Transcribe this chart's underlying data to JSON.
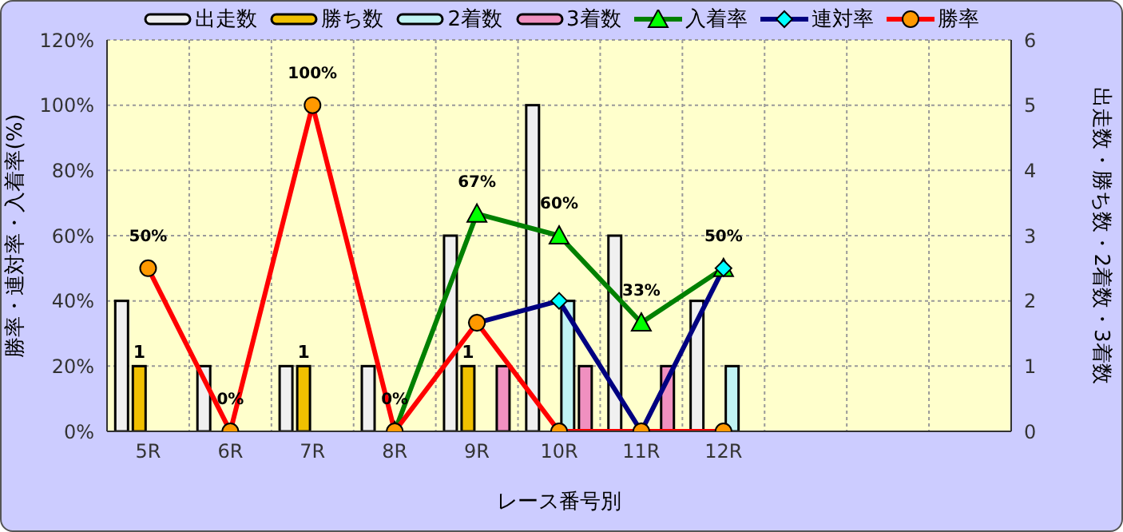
{
  "chart_data": {
    "type": "bar",
    "xlabel": "レース番号別",
    "ylabel": "勝率・連対率・入着率(%)",
    "y2label": "出走数・勝ち数・2着数・3着数",
    "categories": [
      "5R",
      "6R",
      "7R",
      "8R",
      "9R",
      "10R",
      "11R",
      "12R",
      null,
      null,
      null
    ],
    "ylim": [
      0,
      120
    ],
    "yticks": [
      {
        "value": 0,
        "label": "0%"
      },
      {
        "value": 20,
        "label": "20%"
      },
      {
        "value": 40,
        "label": "40%"
      },
      {
        "value": 60,
        "label": "60%"
      },
      {
        "value": 80,
        "label": "80%"
      },
      {
        "value": 100,
        "label": "100%"
      },
      {
        "value": 120,
        "label": "120%"
      }
    ],
    "y2lim": [
      0,
      6
    ],
    "y2ticks": [
      0,
      1,
      2,
      3,
      4,
      5,
      6
    ],
    "grid": true,
    "legend": "top",
    "line_style": "solid",
    "series": [
      {
        "name": "出走数",
        "axis": "y2",
        "color": "#f0f0f0",
        "values": [
          2,
          1,
          1,
          1,
          3,
          5,
          3,
          2,
          null,
          null,
          null
        ]
      },
      {
        "name": "勝ち数",
        "axis": "y2",
        "color": "#f0c000",
        "values": [
          1,
          0,
          1,
          0,
          1,
          0,
          0,
          0,
          null,
          null,
          null
        ],
        "value_labels": [
          "1",
          null,
          "1",
          null,
          "1",
          null,
          null,
          null,
          null,
          null,
          null
        ]
      },
      {
        "name": "2着数",
        "axis": "y2",
        "color": "#c0f4f4",
        "values": [
          0,
          0,
          0,
          0,
          0,
          2,
          0,
          1,
          null,
          null,
          null
        ]
      },
      {
        "name": "3着数",
        "axis": "y2",
        "color": "#f090c0",
        "values": [
          0,
          0,
          0,
          0,
          1,
          1,
          1,
          0,
          null,
          null,
          null
        ]
      },
      {
        "name": "入着率",
        "type": "line",
        "axis": "y",
        "color": "#008000",
        "marker": "triangle",
        "values": [
          null,
          null,
          null,
          0,
          66.7,
          60,
          33.3,
          50,
          null,
          null,
          null
        ],
        "value_labels": [
          null,
          null,
          null,
          "0%",
          "67%",
          "60%",
          "33%",
          "50%",
          null,
          null,
          null
        ]
      },
      {
        "name": "連対率",
        "type": "line",
        "axis": "y",
        "color": "#000080",
        "marker": "diamond",
        "values": [
          null,
          null,
          null,
          null,
          33.3,
          40,
          0,
          50,
          null,
          null,
          null
        ]
      },
      {
        "name": "勝率",
        "type": "line",
        "axis": "y",
        "color": "#ff0000",
        "marker": "circle",
        "values": [
          50,
          0,
          100,
          0,
          33.3,
          0,
          0,
          0,
          null,
          null,
          null
        ],
        "value_labels": [
          "50%",
          "0%",
          "100%",
          null,
          null,
          null,
          null,
          null,
          null,
          null,
          null
        ]
      }
    ]
  }
}
